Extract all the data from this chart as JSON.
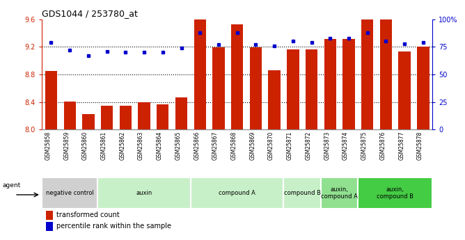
{
  "title": "GDS1044 / 253780_at",
  "samples": [
    "GSM25858",
    "GSM25859",
    "GSM25860",
    "GSM25861",
    "GSM25862",
    "GSM25863",
    "GSM25864",
    "GSM25865",
    "GSM25866",
    "GSM25867",
    "GSM25868",
    "GSM25869",
    "GSM25870",
    "GSM25871",
    "GSM25872",
    "GSM25873",
    "GSM25874",
    "GSM25875",
    "GSM25876",
    "GSM25877",
    "GSM25878"
  ],
  "bar_values": [
    8.85,
    8.41,
    8.22,
    8.35,
    8.35,
    8.4,
    8.37,
    8.47,
    9.6,
    9.19,
    9.53,
    9.19,
    8.86,
    9.16,
    9.16,
    9.31,
    9.31,
    9.6,
    9.6,
    9.13,
    9.2
  ],
  "dot_values": [
    79,
    72,
    67,
    71,
    70,
    70,
    70,
    74,
    88,
    77,
    88,
    77,
    76,
    80,
    79,
    83,
    83,
    88,
    80,
    78,
    79
  ],
  "bar_color": "#cc2200",
  "dot_color": "#0000cc",
  "ylim_left": [
    8.0,
    9.6
  ],
  "ylim_right": [
    0,
    100
  ],
  "yticks_left": [
    8.0,
    8.4,
    8.8,
    9.2,
    9.6
  ],
  "yticks_right": [
    0,
    25,
    50,
    75,
    100
  ],
  "ytick_labels_right": [
    "0",
    "25",
    "50",
    "75",
    "100%"
  ],
  "grid_values": [
    8.4,
    8.8,
    9.2
  ],
  "groups": [
    {
      "label": "negative control",
      "start": 0,
      "end": 3,
      "color": "#d0d0d0"
    },
    {
      "label": "auxin",
      "start": 3,
      "end": 8,
      "color": "#c8f0c8"
    },
    {
      "label": "compound A",
      "start": 8,
      "end": 13,
      "color": "#c8f0c8"
    },
    {
      "label": "compound B",
      "start": 13,
      "end": 15,
      "color": "#c8f0c8"
    },
    {
      "label": "auxin,\ncompound A",
      "start": 15,
      "end": 17,
      "color": "#90e090"
    },
    {
      "label": "auxin,\ncompound B",
      "start": 17,
      "end": 21,
      "color": "#44cc44"
    }
  ],
  "legend_bar_label": "transformed count",
  "legend_dot_label": "percentile rank within the sample",
  "agent_label": "agent"
}
